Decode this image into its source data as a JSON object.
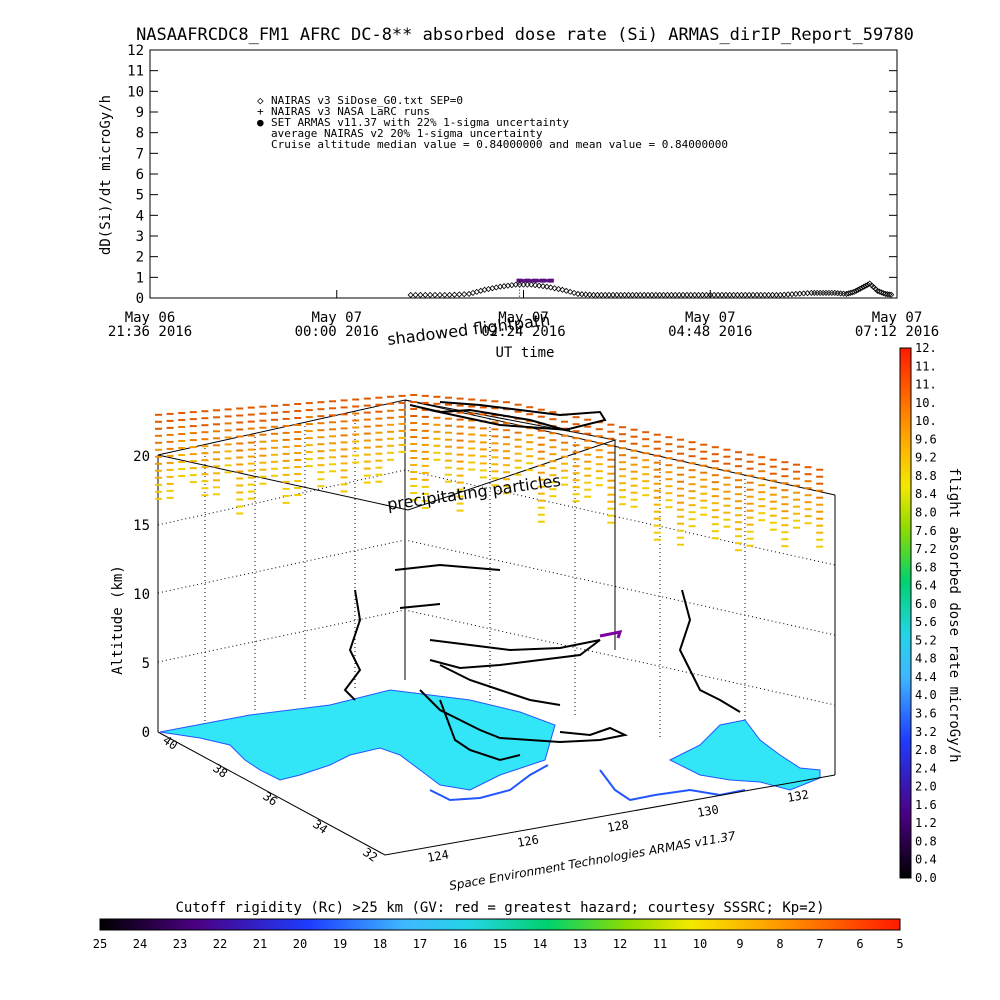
{
  "chart_data": [
    {
      "type": "scatter",
      "title": "NASAAFRCDC8_FM1 AFRC DC-8** absorbed dose rate (Si) ARMAS_dirIP_Report_59780",
      "ylabel": "dD(Si)/dt microGy/h",
      "xlabel": "UT time",
      "ylim": [
        0,
        12
      ],
      "yticks": [
        "0",
        "1",
        "2",
        "3",
        "4",
        "5",
        "6",
        "7",
        "8",
        "9",
        "10",
        "11",
        "12"
      ],
      "xticks": [
        {
          "date": "May 06",
          "time": "21:36 2016"
        },
        {
          "date": "May 07",
          "time": "00:00 2016"
        },
        {
          "date": "May 07",
          "time": "02:24 2016"
        },
        {
          "date": "May 07",
          "time": "04:48 2016"
        },
        {
          "date": "May 07",
          "time": "07:12 2016"
        }
      ],
      "legend": [
        {
          "symbol": "◇",
          "label": "NAIRAS v3 SiDose_G0.txt SEP=0"
        },
        {
          "symbol": "+",
          "label": "NAIRAS v3 NASA LaRC runs"
        },
        {
          "symbol": "●",
          "label": "SET ARMAS v11.37 with 22% 1-sigma uncertainty"
        },
        {
          "symbol": "",
          "label": "average NAIRAS v2 20% 1-sigma uncertainty"
        },
        {
          "symbol": "",
          "label": "Cruise altitude median value = 0.84000000 and mean value = 0.84000000"
        }
      ],
      "annotations": [
        "shadowed flightpath"
      ],
      "series": [
        {
          "name": "NAIRAS v3 SiDose_G0.txt SEP=0",
          "x_hours": [
            0.95,
            1.2,
            1.45,
            1.7,
            1.9,
            2.1,
            2.3,
            2.5,
            2.7,
            2.9,
            3.1,
            3.3,
            3.5,
            3.7,
            3.9,
            4.1,
            4.3,
            4.5,
            4.7,
            4.9,
            5.1,
            5.3,
            5.5,
            5.7,
            5.9,
            6.1,
            6.25,
            6.4,
            6.55,
            6.65,
            6.75,
            6.85,
            6.95,
            7.05,
            7.15
          ],
          "y": [
            0.05,
            0.05,
            0.05,
            0.1,
            0.3,
            0.45,
            0.55,
            0.55,
            0.45,
            0.3,
            0.1,
            0.05,
            0.05,
            0.05,
            0.05,
            0.05,
            0.05,
            0.05,
            0.05,
            0.05,
            0.05,
            0.05,
            0.05,
            0.05,
            0.1,
            0.15,
            0.15,
            0.15,
            0.1,
            0.2,
            0.4,
            0.6,
            0.25,
            0.1,
            0.05
          ]
        },
        {
          "name": "SET ARMAS v11.37 with 22% 1-sigma uncertainty",
          "x_hours": [
            2.35,
            2.45,
            2.55,
            2.65,
            2.75
          ],
          "y": [
            0.84,
            0.84,
            0.84,
            0.84,
            0.84
          ]
        }
      ]
    },
    {
      "type": "scatter",
      "zlabel": "Altitude (km)",
      "zticks": [
        "0",
        "5",
        "10",
        "15",
        "20"
      ],
      "lat_ticks": [
        "40",
        "38",
        "36",
        "34",
        "32"
      ],
      "lon_ticks": [
        "124",
        "126",
        "128",
        "130",
        "132"
      ],
      "annotations": [
        "precipitating particles"
      ],
      "credit": "Space Environment Technologies ARMAS v11.37"
    },
    {
      "type": "heatmap",
      "label": "flight absorbed dose rate microGy/h",
      "ticks": [
        "0.0",
        "0.4",
        "0.8",
        "1.2",
        "1.6",
        "2.0",
        "2.4",
        "2.8",
        "3.2",
        "3.6",
        "4.0",
        "4.4",
        "4.8",
        "5.2",
        "5.6",
        "6.0",
        "6.4",
        "6.8",
        "7.2",
        "7.6",
        "8.0",
        "8.4",
        "8.8",
        "9.2",
        "9.6",
        "10.",
        "10.",
        "11.",
        "11.",
        "12."
      ],
      "range": [
        0,
        12
      ]
    },
    {
      "type": "heatmap",
      "label": "Cutoff rigidity (Rc) >25 km (GV: red = greatest hazard; courtesy SSSRC; Kp=2)",
      "ticks": [
        "25",
        "24",
        "23",
        "22",
        "21",
        "20",
        "19",
        "18",
        "17",
        "16",
        "15",
        "14",
        "13",
        "12",
        "11",
        "10",
        "9",
        "8",
        "7",
        "6",
        "5"
      ]
    }
  ]
}
